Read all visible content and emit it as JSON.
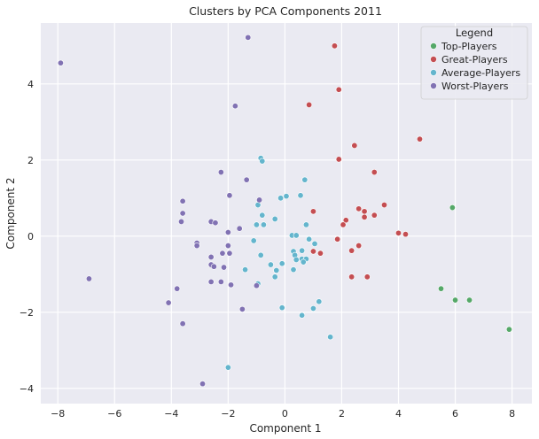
{
  "chart_data": {
    "type": "scatter",
    "title": "Clusters by PCA Components 2011",
    "xlabel": "Component 1",
    "ylabel": "Component 2",
    "xlim": [
      -8.6,
      8.7
    ],
    "ylim": [
      -4.4,
      5.6
    ],
    "xticks": [
      -8,
      -6,
      -4,
      -2,
      0,
      2,
      4,
      6,
      8
    ],
    "yticks": [
      -4,
      -2,
      0,
      2,
      4
    ],
    "grid": true,
    "legend": {
      "title": "Legend",
      "placement": "top-right"
    },
    "series": [
      {
        "name": "Top-Players",
        "color": "#55a868",
        "points": [
          [
            5.9,
            0.75
          ],
          [
            5.5,
            -1.38
          ],
          [
            6.0,
            -1.68
          ],
          [
            6.5,
            -1.68
          ],
          [
            7.9,
            -2.45
          ]
        ]
      },
      {
        "name": "Great-Players",
        "color": "#c44e52",
        "points": [
          [
            1.75,
            5.0
          ],
          [
            1.9,
            3.85
          ],
          [
            0.85,
            3.45
          ],
          [
            2.45,
            2.38
          ],
          [
            4.75,
            2.55
          ],
          [
            1.9,
            2.02
          ],
          [
            3.15,
            1.68
          ],
          [
            3.5,
            0.82
          ],
          [
            2.6,
            0.72
          ],
          [
            2.8,
            0.65
          ],
          [
            3.15,
            0.55
          ],
          [
            2.8,
            0.5
          ],
          [
            2.15,
            0.42
          ],
          [
            2.05,
            0.3
          ],
          [
            1.0,
            0.65
          ],
          [
            4.0,
            0.08
          ],
          [
            4.25,
            0.05
          ],
          [
            1.85,
            -0.08
          ],
          [
            1.0,
            -0.4
          ],
          [
            1.25,
            -0.45
          ],
          [
            2.35,
            -0.38
          ],
          [
            2.6,
            -0.25
          ],
          [
            2.35,
            -1.07
          ],
          [
            2.9,
            -1.07
          ]
        ]
      },
      {
        "name": "Average-Players",
        "color": "#64b5cd",
        "points": [
          [
            -0.85,
            2.05
          ],
          [
            -0.8,
            1.97
          ],
          [
            0.7,
            1.48
          ],
          [
            0.55,
            1.07
          ],
          [
            0.05,
            1.05
          ],
          [
            -0.15,
            1.0
          ],
          [
            -0.35,
            0.45
          ],
          [
            -0.8,
            0.55
          ],
          [
            -0.95,
            0.82
          ],
          [
            -1.0,
            0.3
          ],
          [
            -1.1,
            -0.12
          ],
          [
            -0.75,
            0.3
          ],
          [
            0.75,
            0.3
          ],
          [
            0.25,
            0.02
          ],
          [
            0.4,
            0.02
          ],
          [
            0.85,
            -0.08
          ],
          [
            1.05,
            -0.2
          ],
          [
            0.6,
            -0.38
          ],
          [
            0.3,
            -0.4
          ],
          [
            0.35,
            -0.5
          ],
          [
            0.4,
            -0.62
          ],
          [
            0.6,
            -0.6
          ],
          [
            0.75,
            -0.6
          ],
          [
            0.65,
            -0.68
          ],
          [
            -0.1,
            -0.72
          ],
          [
            -0.5,
            -0.75
          ],
          [
            -0.85,
            -0.5
          ],
          [
            -0.3,
            -0.9
          ],
          [
            0.3,
            -0.88
          ],
          [
            -0.35,
            -1.07
          ],
          [
            -1.4,
            -0.88
          ],
          [
            -0.95,
            -1.25
          ],
          [
            -0.1,
            -1.88
          ],
          [
            1.0,
            -1.9
          ],
          [
            1.2,
            -1.72
          ],
          [
            0.6,
            -2.08
          ],
          [
            1.6,
            -2.65
          ],
          [
            -2.0,
            -3.45
          ]
        ]
      },
      {
        "name": "Worst-Players",
        "color": "#8172b3",
        "points": [
          [
            -7.9,
            4.55
          ],
          [
            -1.3,
            5.22
          ],
          [
            -1.75,
            3.42
          ],
          [
            -2.25,
            1.68
          ],
          [
            -1.35,
            1.48
          ],
          [
            -1.95,
            1.07
          ],
          [
            -0.9,
            0.95
          ],
          [
            -3.6,
            0.92
          ],
          [
            -3.6,
            0.6
          ],
          [
            -3.65,
            0.38
          ],
          [
            -2.6,
            0.38
          ],
          [
            -2.45,
            0.35
          ],
          [
            -1.6,
            0.2
          ],
          [
            -2.0,
            0.1
          ],
          [
            -3.1,
            -0.18
          ],
          [
            -3.1,
            -0.25
          ],
          [
            -2.0,
            -0.25
          ],
          [
            -1.95,
            -0.45
          ],
          [
            -2.2,
            -0.45
          ],
          [
            -2.6,
            -0.55
          ],
          [
            -2.6,
            -0.75
          ],
          [
            -2.5,
            -0.8
          ],
          [
            -2.15,
            -0.82
          ],
          [
            -2.6,
            -1.2
          ],
          [
            -2.25,
            -1.2
          ],
          [
            -1.9,
            -1.28
          ],
          [
            -1.0,
            -1.3
          ],
          [
            -3.8,
            -1.38
          ],
          [
            -6.9,
            -1.12
          ],
          [
            -4.1,
            -1.75
          ],
          [
            -1.5,
            -1.92
          ],
          [
            -3.6,
            -2.3
          ],
          [
            -2.9,
            -3.88
          ]
        ]
      }
    ]
  }
}
